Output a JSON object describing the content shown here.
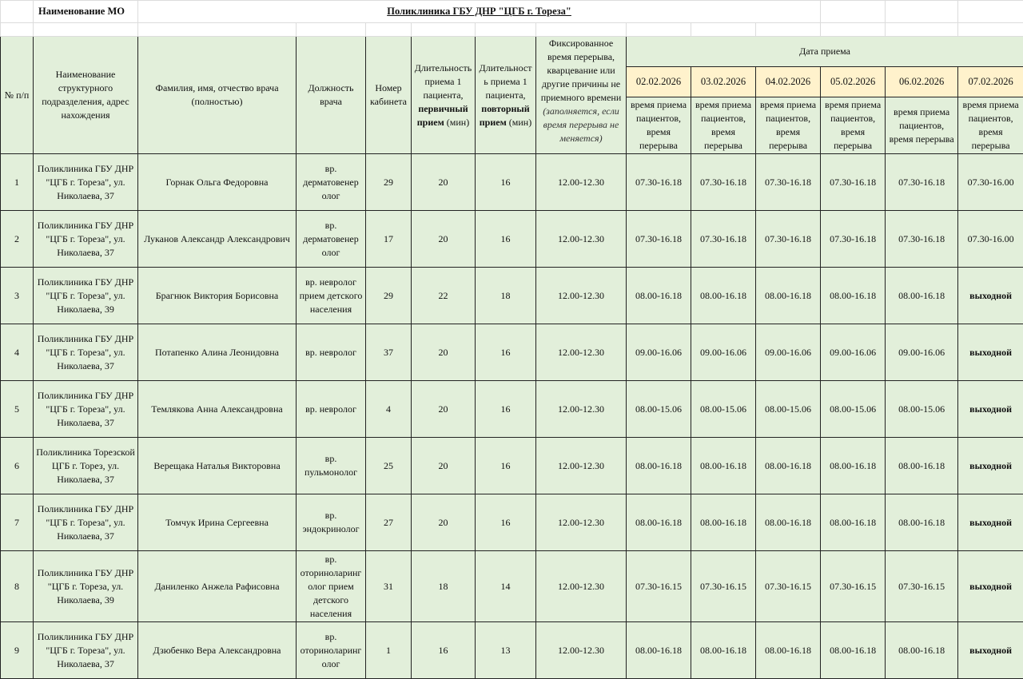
{
  "title_row": {
    "mo_label": "Наименование МО",
    "mo_value": "Поликлиника ГБУ ДНР  \"ЦГБ г. Тореза\""
  },
  "header": {
    "num": "№ п/п",
    "department": "Наименование структурного подразделения, адрес нахождения",
    "doctor": "Фамилия, имя, отчество врача (полностью)",
    "position": "Должность врача",
    "room": "Номер кабинета",
    "primary_a": "Длительность приема 1 пациента,",
    "primary_b": "первичный прием",
    "primary_c": " (мин)",
    "repeat_a": "Длительност ь приема 1 пациента,",
    "repeat_b": "повторный прием",
    "repeat_c": " (мин)",
    "break_a": "Фиксированное время перерыва, кварцевание или другие причины не приемного времени",
    "break_b": "(заполняется, если время перерыва не меняется)",
    "date_group": "Дата  приема",
    "dates": [
      "02.02.2026",
      "03.02.2026",
      "04.02.2026",
      "05.02.2026",
      "06.02.2026",
      "07.02.2026"
    ],
    "date_sub": "время приема пациентов, время перерыва"
  },
  "colors": {
    "header_bg": "#e2efda",
    "date_bg": "#fff2cc",
    "border": "#222222"
  },
  "rows": [
    {
      "num": "1",
      "department": "Поликлиника ГБУ ДНР  \"ЦГБ г. Тореза\", ул. Николаева, 37",
      "doctor": "Горнак Ольга Федоровна",
      "position": "вр. дерматовенер олог",
      "room": "29",
      "primary": "20",
      "repeat": "16",
      "break": "12.00-12.30",
      "times": [
        "07.30-16.18",
        "07.30-16.18",
        "07.30-16.18",
        "07.30-16.18",
        "07.30-16.18",
        "07.30-16.00"
      ]
    },
    {
      "num": "2",
      "department": "Поликлиника ГБУ ДНР  \"ЦГБ г. Тореза\", ул. Николаева, 37",
      "doctor": "Луканов Александр Александрович",
      "position": "вр. дерматовенер олог",
      "room": "17",
      "primary": "20",
      "repeat": "16",
      "break": "12.00-12.30",
      "times": [
        "07.30-16.18",
        "07.30-16.18",
        "07.30-16.18",
        "07.30-16.18",
        "07.30-16.18",
        "07.30-16.00"
      ]
    },
    {
      "num": "3",
      "department": "Поликлиника ГБУ ДНР  \"ЦГБ г. Тореза\", ул. Николаева, 39",
      "doctor": "Брагнюк Виктория Борисовна",
      "position": "вр. невролог прием детского населения",
      "room": "29",
      "primary": "22",
      "repeat": "18",
      "break": "12.00-12.30",
      "times": [
        "08.00-16.18",
        "08.00-16.18",
        "08.00-16.18",
        "08.00-16.18",
        "08.00-16.18",
        "выходной"
      ]
    },
    {
      "num": "4",
      "department": "Поликлиника ГБУ ДНР  \"ЦГБ г. Тореза\", ул. Николаева, 37",
      "doctor": "Потапенко Алина Леонидовна",
      "position": "вр. невролог",
      "room": "37",
      "primary": "20",
      "repeat": "16",
      "break": "12.00-12.30",
      "times": [
        "09.00-16.06",
        "09.00-16.06",
        "09.00-16.06",
        "09.00-16.06",
        "09.00-16.06",
        "выходной"
      ]
    },
    {
      "num": "5",
      "department": "Поликлиника ГБУ ДНР  \"ЦГБ г. Тореза\", ул. Николаева, 37",
      "doctor": "Темлякова Анна Александровна",
      "position": "вр. невролог",
      "room": "4",
      "primary": "20",
      "repeat": "16",
      "break": "12.00-12.30",
      "times": [
        "08.00-15.06",
        "08.00-15.06",
        "08.00-15.06",
        "08.00-15.06",
        "08.00-15.06",
        "выходной"
      ]
    },
    {
      "num": "6",
      "department": "Поликлиника Торезской ЦГБ        г. Торез, ул. Николаева, 37",
      "doctor": "Верещака Наталья Викторовна",
      "position": "вр. пульмонолог",
      "room": "25",
      "primary": "20",
      "repeat": "16",
      "break": "12.00-12.30",
      "times": [
        "08.00-16.18",
        "08.00-16.18",
        "08.00-16.18",
        "08.00-16.18",
        "08.00-16.18",
        "выходной"
      ]
    },
    {
      "num": "7",
      "department": "Поликлиника ГБУ ДНР  \"ЦГБ г. Тореза\", ул. Николаева, 37",
      "doctor": "Томчук Ирина Сергеевна",
      "position": "вр. эндокринолог",
      "room": "27",
      "primary": "20",
      "repeat": "16",
      "break": "12.00-12.30",
      "times": [
        "08.00-16.18",
        "08.00-16.18",
        "08.00-16.18",
        "08.00-16.18",
        "08.00-16.18",
        "выходной"
      ]
    },
    {
      "num": "8",
      "department": "Поликлиника ГБУ ДНР  \"ЦГБ г. Тореза, ул. Николаева, 39",
      "doctor": "Даниленко Анжела Рафисовна",
      "position": "вр. оториноларинг олог прием детского населения",
      "room": "31",
      "primary": "18",
      "repeat": "14",
      "break": "12.00-12.30",
      "times": [
        "07.30-16.15",
        "07.30-16.15",
        "07.30-16.15",
        "07.30-16.15",
        "07.30-16.15",
        "выходной"
      ]
    },
    {
      "num": "9",
      "department": "Поликлиника ГБУ ДНР  \"ЦГБ г. Тореза\", ул. Николаева, 37",
      "doctor": "Дзюбенко Вера Александровна",
      "position": "вр. оториноларинг олог",
      "room": "1",
      "primary": "16",
      "repeat": "13",
      "break": "12.00-12.30",
      "times": [
        "08.00-16.18",
        "08.00-16.18",
        "08.00-16.18",
        "08.00-16.18",
        "08.00-16.18",
        "выходной"
      ]
    }
  ]
}
